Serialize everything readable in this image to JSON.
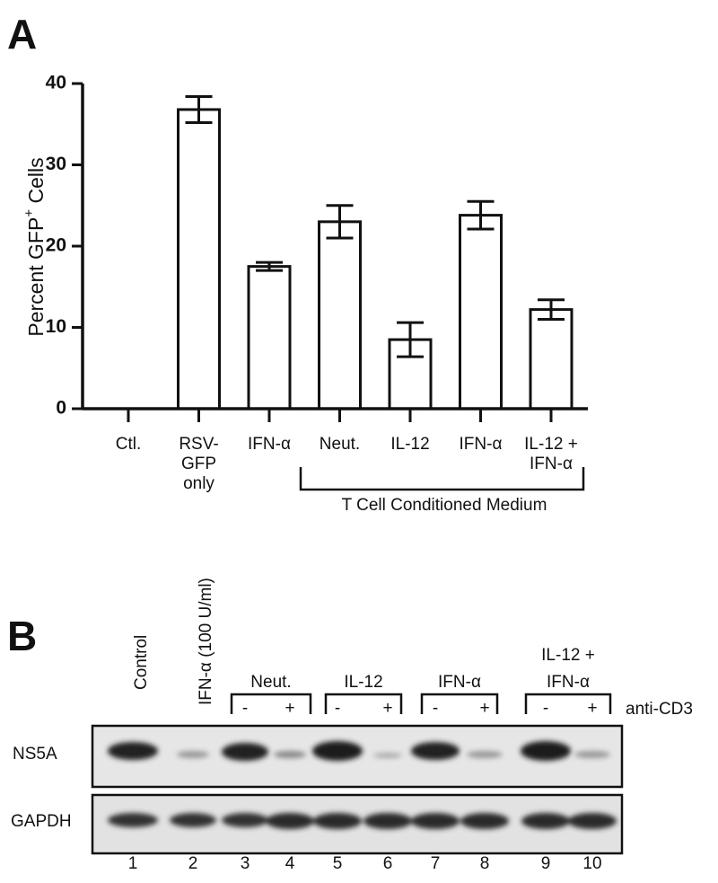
{
  "chart_data": {
    "type": "bar",
    "panel_label": "A",
    "categories": [
      [
        "Ctl."
      ],
      [
        "RSV-",
        "GFP",
        "only"
      ],
      [
        "IFN-α"
      ],
      [
        "Neut."
      ],
      [
        "IL-12"
      ],
      [
        "IFN-α"
      ],
      [
        "IL-12 +",
        "IFN-α"
      ]
    ],
    "values": [
      0,
      36.8,
      17.5,
      23,
      8.5,
      23.8,
      12.2
    ],
    "errors": [
      0,
      1.6,
      0.5,
      2,
      2.1,
      1.7,
      1.2
    ],
    "color": "#ffffff",
    "ylim": [
      0,
      40
    ],
    "yticks": [
      0,
      10,
      20,
      30,
      40
    ],
    "y_label": "Percent GFP",
    "y_label_sup": "+",
    "y_label_end": " Cells",
    "bracket_label": "T Cell Conditioned Medium"
  },
  "blot": {
    "panel_label": "B",
    "lane_headers": [
      "Control",
      "IFN-α (100 U/ml)"
    ],
    "groups": [
      [
        "Neut."
      ],
      [
        "IL-12"
      ],
      [
        "IFN-α"
      ],
      [
        "IL-12 +",
        "IFN-α"
      ]
    ],
    "signs": [
      [
        "-",
        "+"
      ],
      [
        "-",
        "+"
      ],
      [
        "-",
        "+"
      ],
      [
        "-",
        "+"
      ]
    ],
    "treatment": "anti-CD3",
    "rows": [
      "NS5A",
      "GAPDH"
    ],
    "lanes": [
      1,
      2,
      3,
      4,
      5,
      6,
      7,
      8,
      9,
      10
    ]
  }
}
